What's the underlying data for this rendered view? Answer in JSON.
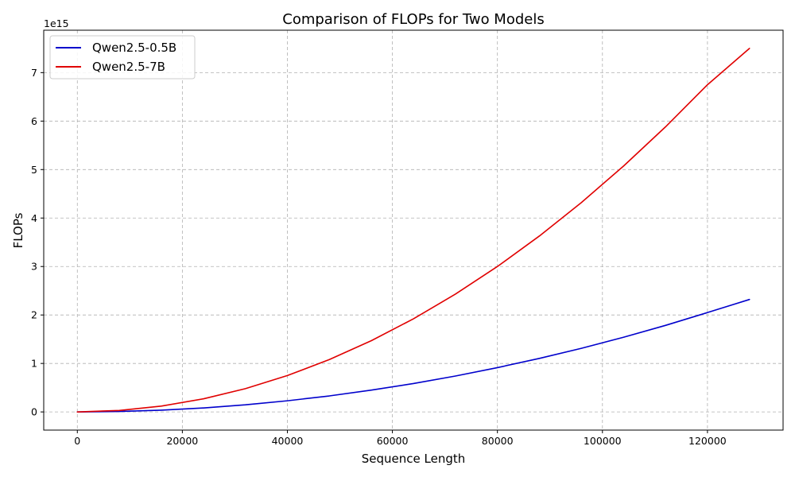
{
  "chart_data": {
    "type": "line",
    "title": "Comparison of FLOPs for Two Models",
    "xlabel": "Sequence Length",
    "ylabel": "FLOPs",
    "y_offset_text": "1e15",
    "xlim": [
      -6400,
      134400
    ],
    "ylim": [
      -0.375,
      7.875
    ],
    "x_ticks": [
      0,
      20000,
      40000,
      60000,
      80000,
      100000,
      120000
    ],
    "x_tick_labels": [
      "0",
      "20000",
      "40000",
      "60000",
      "80000",
      "100000",
      "120000"
    ],
    "y_ticks": [
      0,
      1,
      2,
      3,
      4,
      5,
      6,
      7
    ],
    "y_tick_labels": [
      "0",
      "1",
      "2",
      "3",
      "4",
      "5",
      "6",
      "7"
    ],
    "grid": true,
    "legend_position": "top-left",
    "x": [
      0,
      8000,
      16000,
      24000,
      32000,
      40000,
      48000,
      56000,
      64000,
      72000,
      80000,
      88000,
      96000,
      104000,
      112000,
      120000,
      128000
    ],
    "series": [
      {
        "name": "Qwen2.5-0.5B",
        "color": "#0000cc",
        "values": [
          0,
          0.009,
          0.036,
          0.082,
          0.146,
          0.23,
          0.33,
          0.45,
          0.585,
          0.74,
          0.914,
          1.104,
          1.312,
          1.54,
          1.785,
          2.05,
          2.32
        ]
      },
      {
        "name": "Qwen2.5-7B",
        "color": "#e00000",
        "values": [
          0,
          0.03,
          0.12,
          0.27,
          0.48,
          0.75,
          1.08,
          1.47,
          1.92,
          2.43,
          3.0,
          3.63,
          4.32,
          5.07,
          5.88,
          6.75,
          7.5
        ]
      }
    ]
  }
}
